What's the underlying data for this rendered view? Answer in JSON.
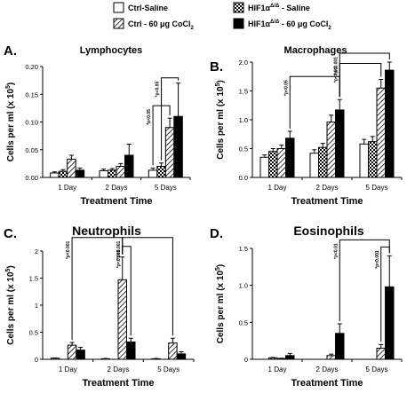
{
  "legend": [
    {
      "label": "Ctrl-Saline",
      "pattern": "white"
    },
    {
      "label": "HIF1α",
      "sup": "Δ/Δ",
      "suffix": " - Saline",
      "pattern": "checker"
    },
    {
      "label": "Ctrl - 60 μg CoCl",
      "sub": "2",
      "pattern": "hatch"
    },
    {
      "label": "HIF1α",
      "sup": "Δ/Δ",
      "suffix": " - 60 μg CoCl",
      "sub2": "2",
      "pattern": "black"
    }
  ],
  "ylabel_main": "Cells per ml (x 10",
  "ylabel_sup": "5",
  "ylabel_close": ")",
  "chart_data": [
    {
      "letter": "A.",
      "title": "Lymphocytes",
      "type": "bar",
      "xlabel": "Treatment Time",
      "categories": [
        "1 Day",
        "2 Days",
        "5 Days"
      ],
      "ylim": [
        0,
        0.2
      ],
      "yticks": [
        "0.00",
        "0.05",
        "0.10",
        "0.15",
        "0.20"
      ],
      "series": [
        {
          "name": "Ctrl-Saline",
          "values": [
            0.008,
            0.012,
            0.013
          ],
          "errors": [
            0.002,
            0.003,
            0.004
          ]
        },
        {
          "name": "HIF1α Δ/Δ - Saline",
          "values": [
            0.011,
            0.013,
            0.02
          ],
          "errors": [
            0.003,
            0.003,
            0.006
          ]
        },
        {
          "name": "Ctrl - 60 μg CoCl2",
          "values": [
            0.033,
            0.02,
            0.09
          ],
          "errors": [
            0.007,
            0.005,
            0.017
          ]
        },
        {
          "name": "HIF1α Δ/Δ - 60 μg CoCl2",
          "values": [
            0.013,
            0.04,
            0.11
          ],
          "errors": [
            0.004,
            0.02,
            0.06
          ]
        }
      ],
      "annotations": [
        "*p<0.05",
        "*p<0.05"
      ]
    },
    {
      "letter": "B.",
      "title": "Macrophages",
      "type": "bar",
      "xlabel": "Treatment Time",
      "categories": [
        "1 Day",
        "2 Days",
        "5 Days"
      ],
      "ylim": [
        0,
        2.0
      ],
      "yticks": [
        "0.0",
        "0.5",
        "1.0",
        "1.5",
        "2.0"
      ],
      "series": [
        {
          "name": "Ctrl-Saline",
          "values": [
            0.35,
            0.42,
            0.58
          ],
          "errors": [
            0.04,
            0.06,
            0.08
          ]
        },
        {
          "name": "HIF1α Δ/Δ - Saline",
          "values": [
            0.45,
            0.52,
            0.62
          ],
          "errors": [
            0.05,
            0.07,
            0.09
          ]
        },
        {
          "name": "Ctrl - 60 μg CoCl2",
          "values": [
            0.5,
            0.96,
            1.55
          ],
          "errors": [
            0.06,
            0.12,
            0.15
          ]
        },
        {
          "name": "HIF1α Δ/Δ - 60 μg CoCl2",
          "values": [
            0.68,
            1.17,
            1.86
          ],
          "errors": [
            0.12,
            0.18,
            0.14
          ]
        }
      ],
      "annotations": [
        "*p<0.05",
        "*p<0.01",
        "*p<0.001"
      ]
    },
    {
      "letter": "C.",
      "title": "Neutrophils",
      "type": "bar",
      "xlabel": "Treatment Time",
      "categories": [
        "1 Day",
        "2 Days",
        "5 Days"
      ],
      "ylim": [
        0,
        2.0
      ],
      "yticks": [
        "0",
        "0.5",
        "1",
        "1.5",
        "2"
      ],
      "series": [
        {
          "name": "Ctrl-Saline",
          "values": [
            0.02,
            0.01,
            0.01
          ],
          "errors": [
            0.005,
            0.005,
            0.005
          ]
        },
        {
          "name": "HIF1α Δ/Δ - Saline",
          "values": [
            0.0,
            0.0,
            0.0
          ],
          "errors": [
            0,
            0,
            0
          ]
        },
        {
          "name": "Ctrl - 60 μg CoCl2",
          "values": [
            0.26,
            1.47,
            0.3
          ],
          "errors": [
            0.05,
            0.42,
            0.09
          ]
        },
        {
          "name": "HIF1α Δ/Δ - 60 μg CoCl2",
          "values": [
            0.17,
            0.32,
            0.1
          ],
          "errors": [
            0.05,
            0.07,
            0.04
          ]
        }
      ],
      "annotations": [
        "*p<0.001",
        "*p<0.001",
        "*p<0.001"
      ]
    },
    {
      "letter": "D.",
      "title": "Eosinophils",
      "type": "bar",
      "xlabel": "Treatment Time",
      "categories": [
        "1 Day",
        "2 Days",
        "5 Days"
      ],
      "ylim": [
        0,
        1.5
      ],
      "yticks": [
        "0",
        "0.5",
        "1.0",
        "1.5"
      ],
      "series": [
        {
          "name": "Ctrl-Saline",
          "values": [
            0.0,
            0.0,
            0.0
          ],
          "errors": [
            0,
            0,
            0
          ]
        },
        {
          "name": "HIF1α Δ/Δ - Saline",
          "values": [
            0.02,
            0.0,
            0.0
          ],
          "errors": [
            0.005,
            0,
            0
          ]
        },
        {
          "name": "Ctrl - 60 μg CoCl2",
          "values": [
            0.01,
            0.05,
            0.15
          ],
          "errors": [
            0.005,
            0.02,
            0.05
          ]
        },
        {
          "name": "HIF1α Δ/Δ - 60 μg CoCl2",
          "values": [
            0.05,
            0.35,
            0.98
          ],
          "errors": [
            0.03,
            0.13,
            0.42
          ]
        }
      ],
      "annotations": [
        "*p<0.01",
        "*p<0.001"
      ]
    }
  ]
}
